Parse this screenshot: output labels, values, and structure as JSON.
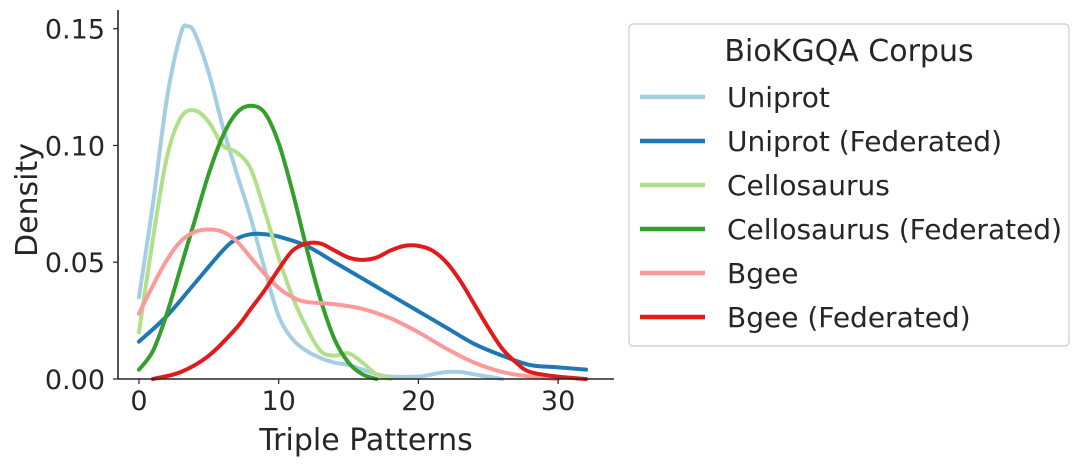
{
  "chart_data": {
    "type": "line",
    "title": "",
    "xlabel": "Triple Patterns",
    "ylabel": "Density",
    "xlim": [
      -1.5,
      34
    ],
    "ylim": [
      0,
      0.158
    ],
    "x_ticks": [
      0,
      10,
      20,
      30
    ],
    "x_tick_labels": [
      "0",
      "10",
      "20",
      "30"
    ],
    "y_ticks": [
      0,
      0.05,
      0.1,
      0.15
    ],
    "y_tick_labels": [
      "0.00",
      "0.05",
      "0.10",
      "0.15"
    ],
    "grid": false,
    "legend": {
      "title": "BioKGQA Corpus",
      "placement": "outside-right"
    },
    "series": [
      {
        "name": "Uniprot",
        "color": "#a6cee3",
        "points": [
          [
            0,
            0.035
          ],
          [
            1,
            0.075
          ],
          [
            2,
            0.12
          ],
          [
            3,
            0.148
          ],
          [
            3.5,
            0.151
          ],
          [
            4,
            0.148
          ],
          [
            5,
            0.131
          ],
          [
            6,
            0.108
          ],
          [
            7,
            0.088
          ],
          [
            8,
            0.069
          ],
          [
            9,
            0.047
          ],
          [
            10,
            0.027
          ],
          [
            11,
            0.017
          ],
          [
            12,
            0.012
          ],
          [
            13,
            0.009
          ],
          [
            14,
            0.007
          ],
          [
            15,
            0.006
          ],
          [
            16,
            0.004
          ],
          [
            17,
            0.002
          ],
          [
            18,
            0.001
          ],
          [
            20,
            0.001
          ],
          [
            21,
            0.002
          ],
          [
            22,
            0.003
          ],
          [
            23,
            0.003
          ],
          [
            24,
            0.002
          ],
          [
            26,
            0.0
          ]
        ]
      },
      {
        "name": "Uniprot (Federated)",
        "color": "#1f78b4",
        "points": [
          [
            0,
            0.016
          ],
          [
            2,
            0.027
          ],
          [
            4,
            0.041
          ],
          [
            6,
            0.055
          ],
          [
            7,
            0.06
          ],
          [
            8,
            0.062
          ],
          [
            9,
            0.062
          ],
          [
            10,
            0.061
          ],
          [
            12,
            0.057
          ],
          [
            14,
            0.05
          ],
          [
            16,
            0.043
          ],
          [
            18,
            0.036
          ],
          [
            20,
            0.029
          ],
          [
            22,
            0.022
          ],
          [
            24,
            0.015
          ],
          [
            26,
            0.01
          ],
          [
            28,
            0.006
          ],
          [
            30,
            0.005
          ],
          [
            32,
            0.004
          ]
        ]
      },
      {
        "name": "Cellosaurus",
        "color": "#b2df8a",
        "points": [
          [
            0,
            0.02
          ],
          [
            1,
            0.06
          ],
          [
            2,
            0.095
          ],
          [
            3,
            0.112
          ],
          [
            4,
            0.115
          ],
          [
            5,
            0.11
          ],
          [
            6,
            0.1
          ],
          [
            7,
            0.097
          ],
          [
            8,
            0.09
          ],
          [
            9,
            0.072
          ],
          [
            10,
            0.052
          ],
          [
            11,
            0.035
          ],
          [
            12,
            0.022
          ],
          [
            13,
            0.012
          ],
          [
            14,
            0.01
          ],
          [
            15,
            0.011
          ],
          [
            16,
            0.007
          ],
          [
            17,
            0.002
          ],
          [
            18,
            0.0
          ]
        ]
      },
      {
        "name": "Cellosaurus (Federated)",
        "color": "#33a02c",
        "points": [
          [
            0,
            0.004
          ],
          [
            1,
            0.012
          ],
          [
            2,
            0.028
          ],
          [
            3,
            0.048
          ],
          [
            4,
            0.068
          ],
          [
            5,
            0.088
          ],
          [
            6,
            0.104
          ],
          [
            7,
            0.114
          ],
          [
            8,
            0.117
          ],
          [
            9,
            0.114
          ],
          [
            10,
            0.101
          ],
          [
            11,
            0.08
          ],
          [
            12,
            0.056
          ],
          [
            13,
            0.034
          ],
          [
            14,
            0.017
          ],
          [
            15,
            0.007
          ],
          [
            16,
            0.002
          ],
          [
            17,
            0.0
          ]
        ]
      },
      {
        "name": "Bgee",
        "color": "#fb9a99",
        "points": [
          [
            0,
            0.028
          ],
          [
            1,
            0.04
          ],
          [
            2,
            0.051
          ],
          [
            3,
            0.059
          ],
          [
            4,
            0.063
          ],
          [
            5,
            0.064
          ],
          [
            6,
            0.063
          ],
          [
            7,
            0.059
          ],
          [
            8,
            0.052
          ],
          [
            9,
            0.045
          ],
          [
            10,
            0.039
          ],
          [
            11,
            0.035
          ],
          [
            12,
            0.033
          ],
          [
            14,
            0.032
          ],
          [
            16,
            0.03
          ],
          [
            18,
            0.026
          ],
          [
            20,
            0.02
          ],
          [
            22,
            0.013
          ],
          [
            24,
            0.007
          ],
          [
            26,
            0.003
          ],
          [
            28,
            0.001
          ],
          [
            30,
            0.0
          ]
        ]
      },
      {
        "name": "Bgee (Federated)",
        "color": "#e31a1c",
        "points": [
          [
            1,
            0.0
          ],
          [
            3,
            0.003
          ],
          [
            5,
            0.01
          ],
          [
            7,
            0.022
          ],
          [
            8,
            0.03
          ],
          [
            9,
            0.038
          ],
          [
            10,
            0.047
          ],
          [
            11,
            0.055
          ],
          [
            12,
            0.058
          ],
          [
            13,
            0.058
          ],
          [
            14,
            0.055
          ],
          [
            15,
            0.052
          ],
          [
            16,
            0.051
          ],
          [
            17,
            0.052
          ],
          [
            18,
            0.055
          ],
          [
            19,
            0.057
          ],
          [
            20,
            0.057
          ],
          [
            21,
            0.055
          ],
          [
            22,
            0.05
          ],
          [
            23,
            0.042
          ],
          [
            24,
            0.032
          ],
          [
            25,
            0.022
          ],
          [
            26,
            0.013
          ],
          [
            27,
            0.007
          ],
          [
            28,
            0.003
          ],
          [
            30,
            0.001
          ],
          [
            32,
            0.0
          ]
        ]
      }
    ]
  }
}
